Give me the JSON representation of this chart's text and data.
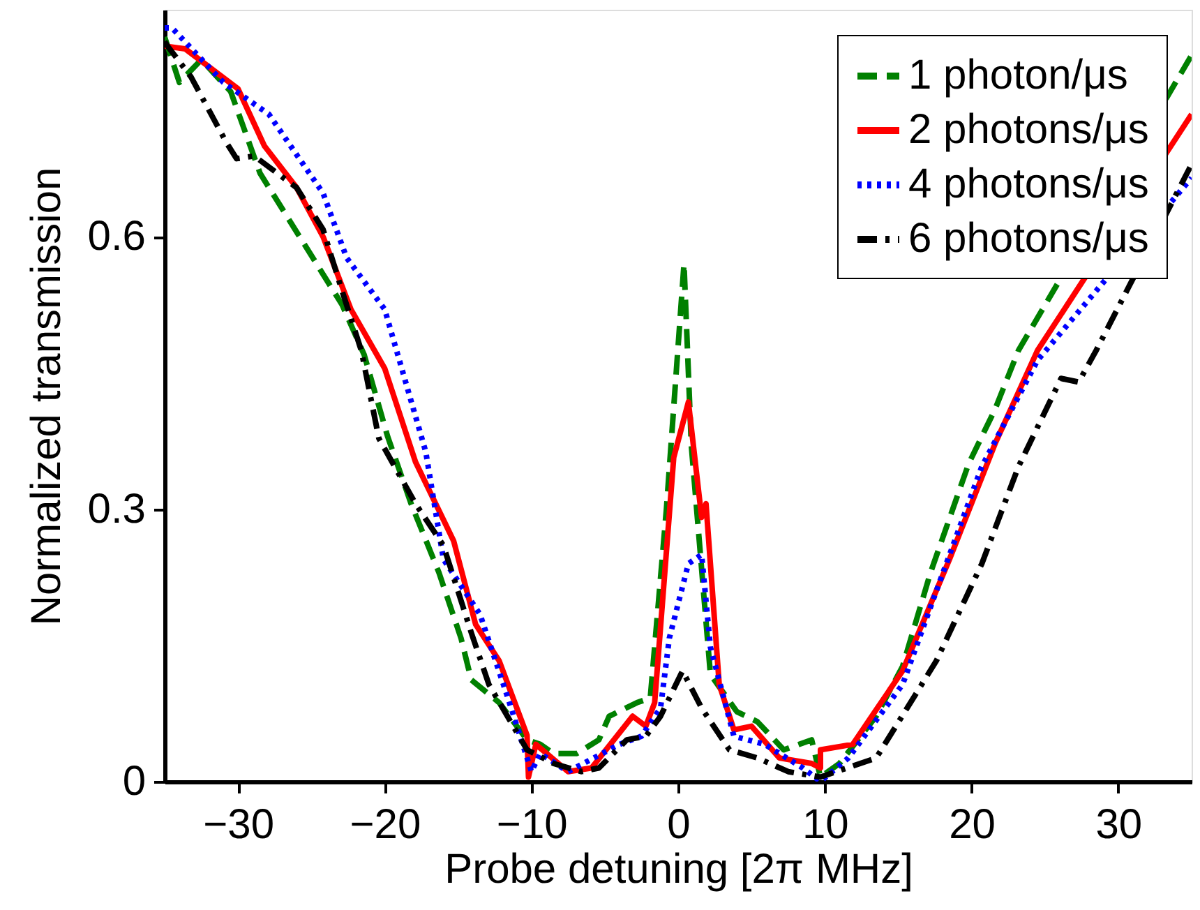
{
  "chart_data": {
    "type": "line",
    "xlabel": "Probe detuning [2π MHz]",
    "ylabel": "Normalized transmission",
    "xlim": [
      -35,
      35
    ],
    "xticks": [
      -30,
      -20,
      -10,
      0,
      10,
      20,
      30
    ],
    "ylim": [
      0,
      0.85
    ],
    "yticks": [
      0,
      0.3,
      0.6
    ],
    "grid": false,
    "legend": "top right",
    "marker": "none",
    "series": [
      {
        "name": "1 photon/μs",
        "color": "#008000",
        "line_style": "dashed",
        "x": [
          -35,
          -34,
          -32.5,
          -30.5,
          -28.5,
          -22.9,
          -21.4,
          -19.8,
          -18.2,
          -16.3,
          -14.8,
          -14.1,
          -12.2,
          -10.3,
          -9.4,
          -8.5,
          -6.9,
          -5.4,
          -4.7,
          -2.8,
          -1.9,
          -0.8,
          0.4,
          0.9,
          2.2,
          4.0,
          5.4,
          7.2,
          9.1,
          9.7,
          11,
          13.5,
          15.3,
          17.2,
          19.8,
          21.6,
          23.2,
          35
        ],
        "values": [
          0.82,
          0.77,
          0.795,
          0.76,
          0.67,
          0.525,
          0.47,
          0.38,
          0.306,
          0.23,
          0.158,
          0.112,
          0.087,
          0.046,
          0.041,
          0.031,
          0.031,
          0.046,
          0.072,
          0.087,
          0.092,
          0.3,
          0.57,
          0.37,
          0.118,
          0.077,
          0.066,
          0.035,
          0.046,
          0.005,
          0.02,
          0.072,
          0.127,
          0.23,
          0.35,
          0.41,
          0.475,
          0.8
        ]
      },
      {
        "name": "2 photons/μs",
        "color": "#ff0000",
        "line_style": "solid",
        "x": [
          -35,
          -33.6,
          -30,
          -28.2,
          -26,
          -24.2,
          -22.3,
          -20,
          -17.9,
          -15.3,
          -13.8,
          -12.2,
          -10.3,
          -10.2,
          -9.7,
          -7.5,
          -5.9,
          -3.1,
          -2.2,
          -1.6,
          -0.3,
          0.7,
          1.6,
          1.9,
          2.8,
          3.8,
          5.0,
          6.9,
          9.1,
          9.7,
          9.7,
          11.9,
          15.3,
          18.5,
          21.6,
          24.5,
          35
        ],
        "values": [
          0.81,
          0.807,
          0.763,
          0.7,
          0.654,
          0.6,
          0.52,
          0.455,
          0.352,
          0.265,
          0.173,
          0.133,
          0.051,
          0.005,
          0.041,
          0.011,
          0.015,
          0.072,
          0.061,
          0.087,
          0.357,
          0.418,
          0.291,
          0.306,
          0.107,
          0.057,
          0.061,
          0.026,
          0.02,
          0.015,
          0.035,
          0.041,
          0.122,
          0.245,
          0.372,
          0.475,
          0.735
        ]
      },
      {
        "name": "4 photons/μs",
        "color": "#0000ff",
        "line_style": "dotted",
        "x": [
          -35,
          -34.5,
          -31,
          -27.9,
          -24.2,
          -22.6,
          -20,
          -17.2,
          -16,
          -13.5,
          -11.6,
          -10,
          -9.4,
          -7.5,
          -4.0,
          -2.5,
          -1.2,
          -0.6,
          0.7,
          1.6,
          2.2,
          3.8,
          5.9,
          8.5,
          9.7,
          11.6,
          15.3,
          17.6,
          20.7,
          24.5,
          35
        ],
        "values": [
          0.83,
          0.83,
          0.77,
          0.735,
          0.648,
          0.577,
          0.52,
          0.363,
          0.245,
          0.184,
          0.092,
          0.011,
          0.031,
          0.011,
          0.041,
          0.05,
          0.081,
          0.158,
          0.24,
          0.25,
          0.148,
          0.05,
          0.041,
          0.015,
          0,
          0.026,
          0.107,
          0.21,
          0.347,
          0.464,
          0.665
        ]
      },
      {
        "name": "6 photons/μs",
        "color": "#000000",
        "line_style": "dashdot",
        "x": [
          -35,
          -34.8,
          -33.2,
          -30.8,
          -30.1,
          -28.9,
          -26,
          -24.2,
          -22.9,
          -21.6,
          -20.4,
          -17.9,
          -16,
          -14.1,
          -12.9,
          -10.3,
          -8.5,
          -6.6,
          -5.4,
          -3.5,
          -2.2,
          -1.2,
          0.3,
          1.6,
          3.5,
          5.4,
          7.5,
          9.7,
          13.5,
          17.6,
          20.7,
          23.2,
          26.1,
          27.3,
          28.5,
          35
        ],
        "values": [
          0.815,
          0.81,
          0.776,
          0.704,
          0.686,
          0.689,
          0.654,
          0.608,
          0.54,
          0.475,
          0.378,
          0.306,
          0.26,
          0.164,
          0.107,
          0.035,
          0.02,
          0.011,
          0.015,
          0.046,
          0.05,
          0.072,
          0.122,
          0.081,
          0.035,
          0.026,
          0.011,
          0.005,
          0.026,
          0.133,
          0.24,
          0.347,
          0.444,
          0.44,
          0.475,
          0.68
        ]
      }
    ]
  }
}
